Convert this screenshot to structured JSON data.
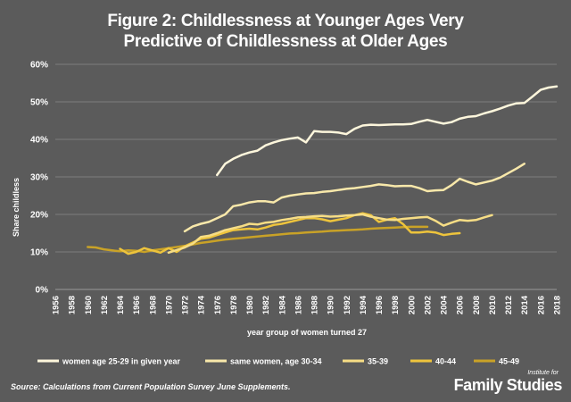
{
  "chart_data": {
    "type": "line",
    "title_lines": [
      "Figure 2: Childlessness at Younger Ages Very",
      "Predictive of Childlessness at Older Ages"
    ],
    "xlabel": "year group of women turned 27",
    "ylabel": "Share childless",
    "x_ticks": [
      "1956",
      "1958",
      "1960",
      "1962",
      "1964",
      "1966",
      "1968",
      "1970",
      "1972",
      "1974",
      "1976",
      "1978",
      "1980",
      "1982",
      "1984",
      "1986",
      "1988",
      "1990",
      "1992",
      "1994",
      "1996",
      "1998",
      "2000",
      "2002",
      "2004",
      "2006",
      "2008",
      "2010",
      "2012",
      "2014",
      "2016",
      "2018"
    ],
    "y_ticks": [
      "0%",
      "10%",
      "20%",
      "30%",
      "40%",
      "50%",
      "60%"
    ],
    "xlim": [
      1956,
      2018
    ],
    "ylim": [
      0,
      0.6
    ],
    "grid": "horizontal",
    "legend_position": "bottom",
    "series": [
      {
        "name": "women age 25-29 in given year",
        "color": "#fdf6dc",
        "x": [
          1976,
          1977,
          1978,
          1979,
          1980,
          1981,
          1982,
          1983,
          1984,
          1985,
          1986,
          1987,
          1988,
          1989,
          1990,
          1991,
          1992,
          1993,
          1994,
          1995,
          1996,
          1997,
          1998,
          1999,
          2000,
          2001,
          2002,
          2003,
          2004,
          2005,
          2006,
          2007,
          2008,
          2009,
          2010,
          2011,
          2012,
          2013,
          2014,
          2015,
          2016,
          2017,
          2018
        ],
        "values": [
          0.305,
          0.335,
          0.348,
          0.358,
          0.365,
          0.37,
          0.384,
          0.392,
          0.398,
          0.402,
          0.405,
          0.392,
          0.422,
          0.42,
          0.42,
          0.418,
          0.414,
          0.428,
          0.437,
          0.439,
          0.438,
          0.439,
          0.44,
          0.44,
          0.441,
          0.447,
          0.452,
          0.447,
          0.442,
          0.446,
          0.455,
          0.46,
          0.462,
          0.469,
          0.475,
          0.482,
          0.49,
          0.496,
          0.497,
          0.514,
          0.532,
          0.538,
          0.541
        ]
      },
      {
        "name": "same women, age 30-34",
        "color": "#f8e8aa",
        "x": [
          1972,
          1973,
          1974,
          1975,
          1976,
          1977,
          1978,
          1979,
          1980,
          1981,
          1982,
          1983,
          1984,
          1985,
          1986,
          1987,
          1988,
          1989,
          1990,
          1991,
          1992,
          1993,
          1994,
          1995,
          1996,
          1997,
          1998,
          1999,
          2000,
          2001,
          2002,
          2003,
          2004,
          2005,
          2006,
          2007,
          2008,
          2009,
          2010,
          2011,
          2012,
          2013,
          2014
        ],
        "values": [
          0.155,
          0.168,
          0.175,
          0.18,
          0.19,
          0.2,
          0.222,
          0.226,
          0.232,
          0.235,
          0.235,
          0.232,
          0.245,
          0.25,
          0.253,
          0.256,
          0.257,
          0.26,
          0.262,
          0.265,
          0.268,
          0.27,
          0.273,
          0.276,
          0.28,
          0.278,
          0.275,
          0.276,
          0.276,
          0.27,
          0.262,
          0.264,
          0.265,
          0.278,
          0.295,
          0.287,
          0.28,
          0.285,
          0.29,
          0.298,
          0.31,
          0.322,
          0.335
        ]
      },
      {
        "name": "35-39",
        "color": "#f6dd85",
        "x": [
          1970,
          1971,
          1972,
          1973,
          1974,
          1975,
          1976,
          1977,
          1978,
          1979,
          1980,
          1981,
          1982,
          1983,
          1984,
          1985,
          1986,
          1987,
          1988,
          1989,
          1990,
          1991,
          1992,
          1993,
          1994,
          1995,
          1996,
          1997,
          1998,
          1999,
          2000,
          2001,
          2002,
          2003,
          2004,
          2005,
          2006,
          2007,
          2008,
          2009,
          2010
        ],
        "values": [
          0.098,
          0.105,
          0.112,
          0.122,
          0.14,
          0.143,
          0.15,
          0.158,
          0.163,
          0.168,
          0.175,
          0.173,
          0.178,
          0.18,
          0.185,
          0.188,
          0.192,
          0.193,
          0.195,
          0.196,
          0.194,
          0.195,
          0.197,
          0.198,
          0.2,
          0.194,
          0.19,
          0.186,
          0.185,
          0.188,
          0.19,
          0.192,
          0.193,
          0.183,
          0.17,
          0.178,
          0.185,
          0.183,
          0.185,
          0.192,
          0.198
        ]
      },
      {
        "name": "40-44",
        "color": "#eec43c",
        "x": [
          1964,
          1965,
          1966,
          1967,
          1968,
          1969,
          1970,
          1971,
          1972,
          1973,
          1974,
          1975,
          1976,
          1977,
          1978,
          1979,
          1980,
          1981,
          1982,
          1983,
          1984,
          1985,
          1986,
          1987,
          1988,
          1989,
          1990,
          1991,
          1992,
          1993,
          1994,
          1995,
          1996,
          1997,
          1998,
          1999,
          2000,
          2001,
          2002,
          2003,
          2004,
          2005,
          2006
        ],
        "values": [
          0.108,
          0.095,
          0.1,
          0.11,
          0.104,
          0.098,
          0.11,
          0.1,
          0.115,
          0.125,
          0.135,
          0.138,
          0.145,
          0.152,
          0.158,
          0.16,
          0.162,
          0.16,
          0.165,
          0.172,
          0.175,
          0.18,
          0.185,
          0.19,
          0.19,
          0.187,
          0.182,
          0.186,
          0.19,
          0.198,
          0.203,
          0.198,
          0.18,
          0.186,
          0.19,
          0.174,
          0.152,
          0.152,
          0.154,
          0.152,
          0.145,
          0.148,
          0.15
        ]
      },
      {
        "name": "45-49",
        "color": "#c9a227",
        "x": [
          1960,
          1961,
          1962,
          1963,
          1964,
          1965,
          1966,
          1967,
          1968,
          1969,
          1970,
          1971,
          1972,
          1973,
          1974,
          1975,
          1976,
          1977,
          1978,
          1979,
          1980,
          1981,
          1982,
          1983,
          1984,
          1985,
          1986,
          1987,
          1988,
          1989,
          1990,
          1991,
          1992,
          1993,
          1994,
          1995,
          1996,
          1997,
          1998,
          1999,
          2000,
          2001,
          2002
        ],
        "values": [
          0.113,
          0.112,
          0.107,
          0.104,
          0.102,
          0.104,
          0.103,
          0.1,
          0.104,
          0.107,
          0.11,
          0.113,
          0.116,
          0.12,
          0.124,
          0.127,
          0.13,
          0.133,
          0.135,
          0.137,
          0.139,
          0.141,
          0.143,
          0.145,
          0.147,
          0.149,
          0.15,
          0.152,
          0.153,
          0.154,
          0.156,
          0.157,
          0.158,
          0.159,
          0.16,
          0.162,
          0.163,
          0.164,
          0.165,
          0.166,
          0.167,
          0.167,
          0.167
        ]
      }
    ]
  },
  "source": "Source: Calculations from Current Population Survey June Supplements.",
  "brand": {
    "small": "Institute for",
    "big": "Family Studies"
  }
}
